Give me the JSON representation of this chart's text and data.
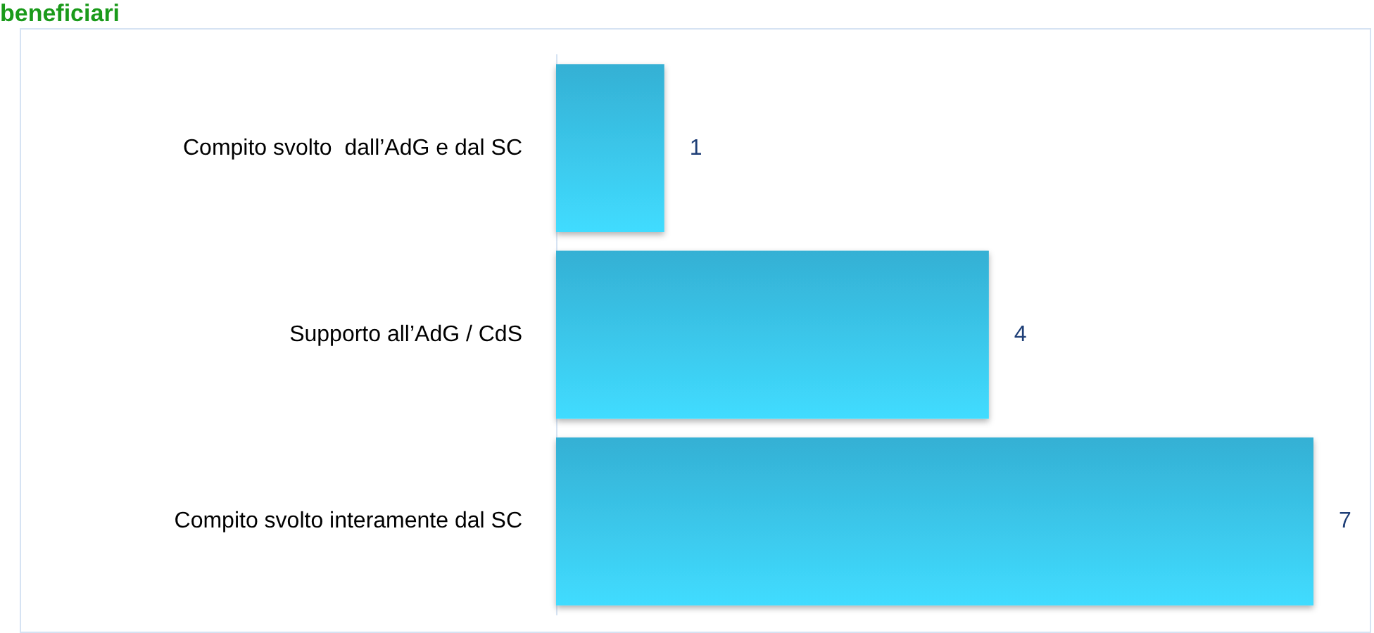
{
  "chart_data": {
    "type": "bar",
    "orientation": "horizontal",
    "title": "beneficiari",
    "categories": [
      "Compito svolto  dall’AdG e dal SC",
      "Supporto all’AdG / CdS",
      "Compito svolto interamente dal SC"
    ],
    "values": [
      1,
      4,
      7
    ],
    "color": "#34b0d4",
    "data_labels": true
  }
}
